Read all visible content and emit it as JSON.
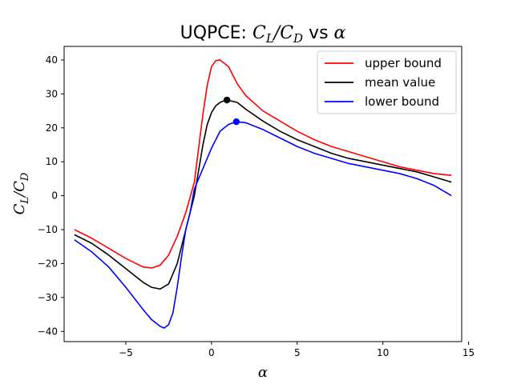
{
  "chart_data": {
    "type": "line",
    "title_prefix": "UQPCE: ",
    "title_math_main": "C",
    "title_math_sub1": "L",
    "title_math_slash": "/C",
    "title_math_sub2": "D",
    "title_vs": " vs ",
    "title_alpha": "α",
    "xlabel": "α",
    "ylabel_main": "C",
    "ylabel_sub1": "L",
    "ylabel_slash": "/C",
    "ylabel_sub2": "D",
    "xlim": [
      -8.6,
      14.6
    ],
    "ylim": [
      -43,
      44
    ],
    "xticks": [
      -5,
      0,
      5,
      10,
      15
    ],
    "yticks": [
      -40,
      -30,
      -20,
      -10,
      0,
      10,
      20,
      30,
      40
    ],
    "legend_position": "upper right",
    "grid": false,
    "series": [
      {
        "name": "upper bound",
        "color": "#ff0000",
        "x": [
          -8,
          -7,
          -6,
          -5,
          -4,
          -3.5,
          -3,
          -2.5,
          -2,
          -1.5,
          -1,
          -0.5,
          -0.25,
          0,
          0.25,
          0.5,
          0.75,
          1,
          1.5,
          2,
          3,
          4,
          5,
          6,
          7,
          8,
          9,
          10,
          11,
          12,
          13,
          14
        ],
        "y": [
          -10,
          -12.5,
          -15.5,
          -18.5,
          -21,
          -21.3,
          -20.5,
          -17.5,
          -12,
          -5,
          4,
          24,
          32.5,
          38,
          39.8,
          40,
          39,
          38,
          33,
          29.5,
          25,
          22,
          19,
          16.5,
          14.5,
          13,
          11.5,
          10,
          8.5,
          7.5,
          6.5,
          6
        ]
      },
      {
        "name": "mean value",
        "color": "#000000",
        "x": [
          -8,
          -7,
          -6,
          -5,
          -4,
          -3.5,
          -3,
          -2.5,
          -2,
          -1.5,
          -1,
          -0.5,
          -0.25,
          0,
          0.25,
          0.5,
          0.75,
          0.9,
          1.5,
          2,
          3,
          4,
          5,
          6,
          7,
          8,
          9,
          10,
          11,
          12,
          13,
          14
        ],
        "y": [
          -11.5,
          -14,
          -17.5,
          -21.5,
          -25.5,
          -27,
          -27.5,
          -26,
          -20,
          -10,
          0,
          15,
          21,
          24.5,
          26.5,
          27.5,
          28,
          28.2,
          27.5,
          25.5,
          22,
          19,
          16.5,
          14.5,
          12.5,
          11,
          10,
          9,
          8,
          7,
          5.5,
          4
        ]
      },
      {
        "name": "lower bound",
        "color": "#0000ff",
        "x": [
          -8,
          -7,
          -6,
          -5,
          -4,
          -3.5,
          -3,
          -2.75,
          -2.5,
          -2.25,
          -2,
          -1.75,
          -1.5,
          -1.25,
          -1,
          -0.5,
          0,
          0.5,
          1,
          1.45,
          2,
          3,
          4,
          5,
          6,
          7,
          8,
          9,
          10,
          11,
          12,
          13,
          14
        ],
        "y": [
          -13,
          -16.5,
          -21,
          -27,
          -33.5,
          -36.5,
          -38.5,
          -39,
          -38,
          -34.5,
          -27,
          -18,
          -10,
          -5,
          2,
          8,
          14,
          19,
          21,
          21.8,
          21.5,
          19.5,
          17,
          14.5,
          12.5,
          11,
          9.5,
          8.5,
          7.5,
          6.5,
          5,
          3,
          0
        ]
      }
    ],
    "markers": [
      {
        "series": "mean value",
        "x": 0.9,
        "y": 28.2,
        "color": "#000000"
      },
      {
        "series": "lower bound",
        "x": 1.45,
        "y": 21.8,
        "color": "#0000ff"
      }
    ]
  }
}
